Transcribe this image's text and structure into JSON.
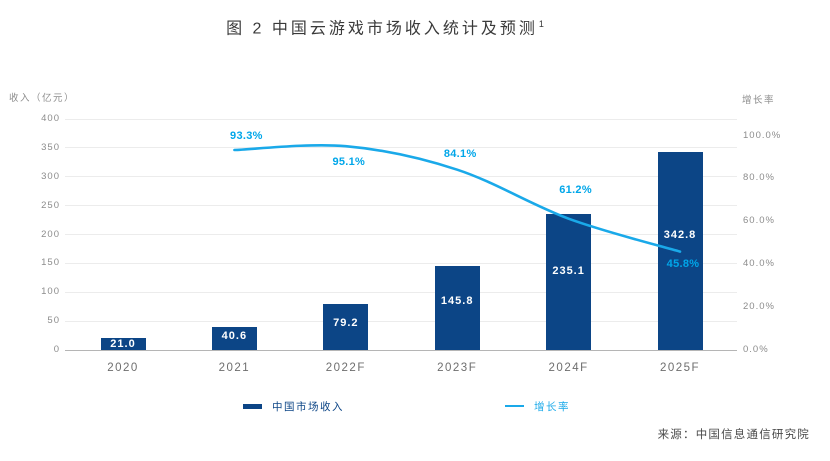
{
  "title": {
    "text": "图 2 中国云游戏市场收入统计及预测",
    "superscript": "1"
  },
  "source": "来源：中国信息通信研究院",
  "colors": {
    "bar": "#0C4586",
    "line": "#1AA9E9",
    "pct_label": "#00A6E9",
    "value_label": "#FFFFFF",
    "grid": "#ECECEC",
    "baseline": "#B5B5B5",
    "tick_text": "#8C8C8C",
    "category_text": "#6E6E6E"
  },
  "chart_data": {
    "type": "bar+line",
    "title": "图 2 中国云游戏市场收入统计及预测",
    "categories": [
      "2020",
      "2021",
      "2022F",
      "2023F",
      "2024F",
      "2025F"
    ],
    "series": [
      {
        "name": "中国市场收入",
        "type": "bar",
        "axis": "left",
        "values": [
          21.0,
          40.6,
          79.2,
          145.8,
          235.1,
          342.8
        ],
        "value_labels": [
          "21.0",
          "40.6",
          "79.2",
          "145.8",
          "235.1",
          "342.8"
        ]
      },
      {
        "name": "增长率",
        "type": "line",
        "axis": "right",
        "values_pct": [
          null,
          93.3,
          95.1,
          84.1,
          61.2,
          45.8
        ],
        "value_labels": [
          "93.3%",
          "95.1%",
          "84.1%",
          "61.2%",
          "45.8%"
        ]
      }
    ],
    "left_axis": {
      "label": "收入（亿元）",
      "ticks": [
        400,
        350,
        300,
        250,
        200,
        150,
        100,
        50,
        0
      ],
      "range": [
        0,
        400
      ]
    },
    "right_axis": {
      "label": "增长率",
      "ticks": [
        "100.0%",
        "80.0%",
        "60.0%",
        "40.0%",
        "20.0%",
        "0.0%"
      ],
      "range_pct": [
        0,
        100
      ]
    },
    "legend": [
      {
        "label": "中国市场收入",
        "swatch": "bar"
      },
      {
        "label": "增长率",
        "swatch": "line"
      }
    ],
    "grid": "horizontal",
    "source": "来源：中国信息通信研究院"
  }
}
